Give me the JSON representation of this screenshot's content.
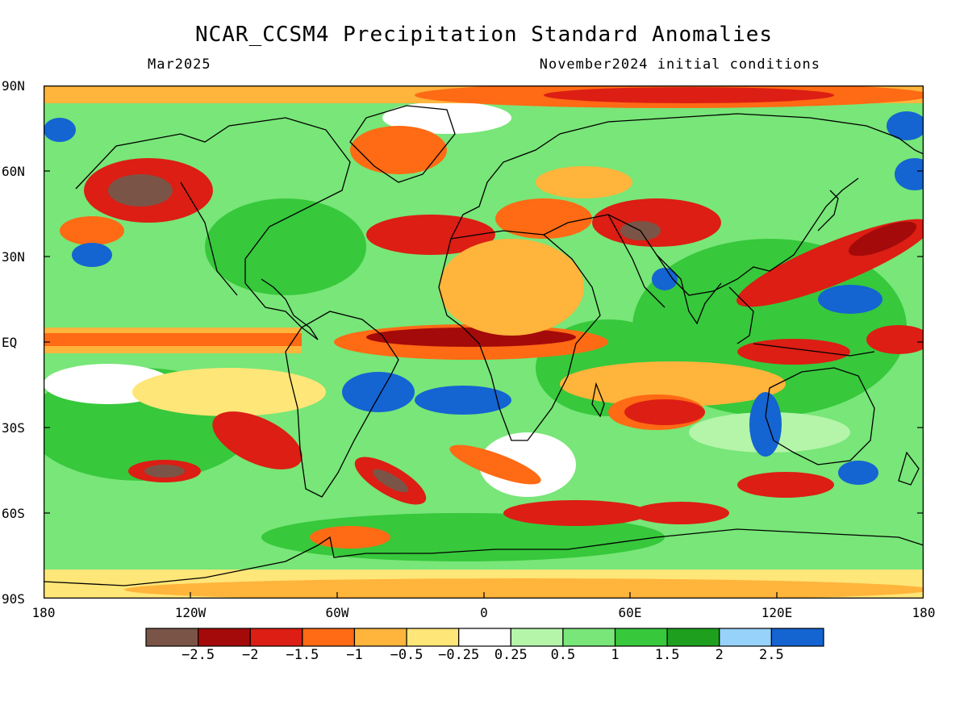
{
  "title": "NCAR_CCSM4 Precipitation Standard Anomalies",
  "month": "Mar2025",
  "initial_conditions": "November2024 initial conditions",
  "lat_labels": [
    "90N",
    "60N",
    "30N",
    "EQ",
    "30S",
    "60S",
    "90S"
  ],
  "lon_labels": [
    "180",
    "120W",
    "60W",
    "0",
    "60E",
    "120E",
    "180"
  ],
  "legend": {
    "colors": [
      "#7a5547",
      "#a50a0a",
      "#dc1e14",
      "#ff6a14",
      "#ffb43c",
      "#ffe678",
      "#ffffff",
      "#b4f5aa",
      "#78e678",
      "#37c83c",
      "#1ea01e",
      "#96d2fa",
      "#1464d2"
    ],
    "labels": [
      "−2.5",
      "−2",
      "−1.5",
      "−1",
      "−0.5",
      "−0.25",
      "0.25",
      "0.5",
      "1",
      "1.5",
      "2",
      "2.5"
    ]
  }
}
